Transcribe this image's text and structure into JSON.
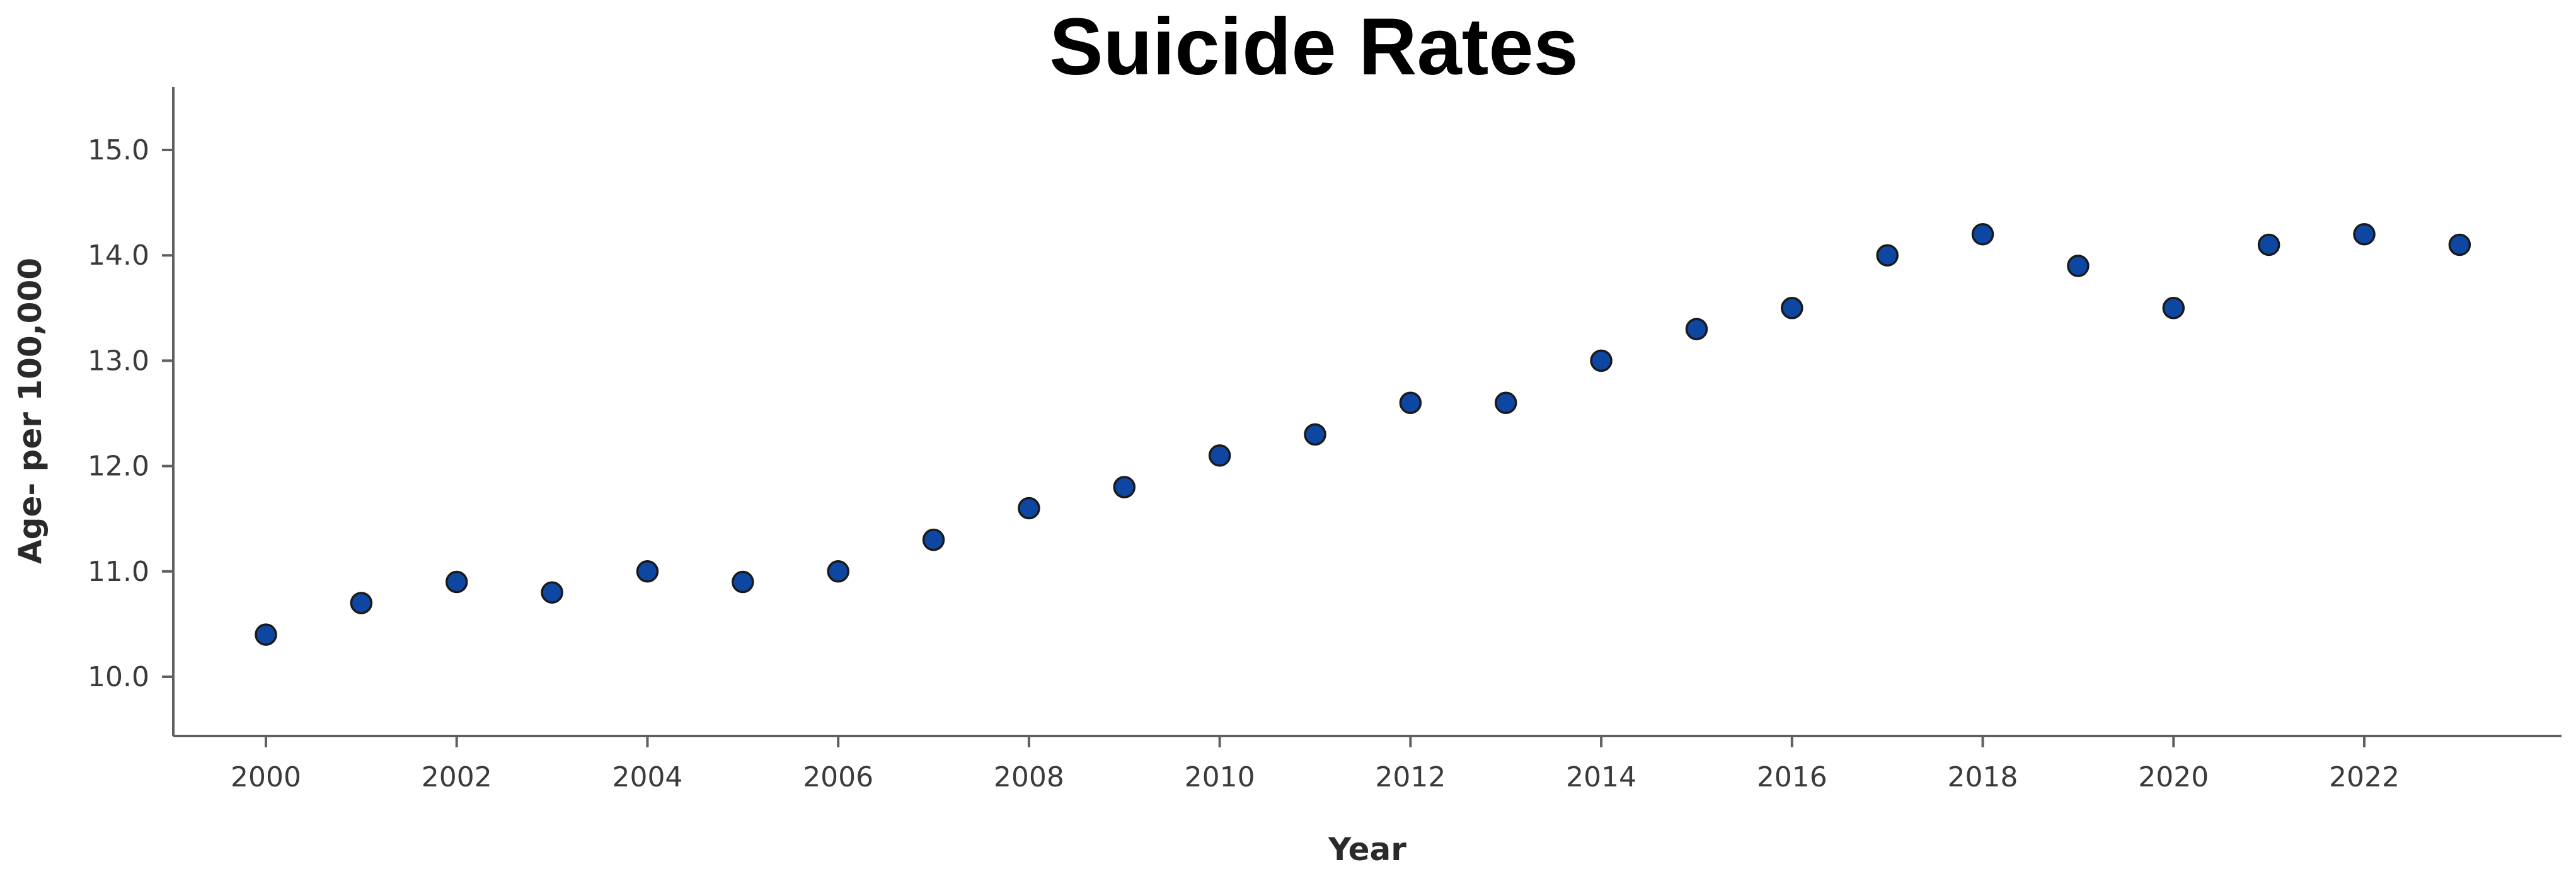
{
  "chart_data": {
    "type": "scatter",
    "title": "Suicide Rates",
    "xlabel": "Year",
    "ylabel": "Age- per 100,000",
    "x": [
      2000,
      2001,
      2002,
      2003,
      2004,
      2005,
      2006,
      2007,
      2008,
      2009,
      2010,
      2011,
      2012,
      2013,
      2014,
      2015,
      2016,
      2017,
      2018,
      2019,
      2020,
      2021,
      2022,
      2023
    ],
    "y": [
      10.4,
      10.7,
      10.9,
      10.8,
      11.0,
      10.9,
      11.0,
      11.3,
      11.6,
      11.8,
      12.1,
      12.3,
      12.6,
      12.6,
      13.0,
      13.3,
      13.5,
      14.0,
      14.2,
      13.9,
      13.5,
      14.1,
      14.2,
      14.1
    ],
    "x_ticks": [
      "2000",
      "2002",
      "2004",
      "2006",
      "2008",
      "2010",
      "2012",
      "2014",
      "2016",
      "2018",
      "2020",
      "2022"
    ],
    "y_ticks": [
      "10.0",
      "11.0",
      "12.0",
      "13.0",
      "14.0",
      "15.0"
    ],
    "xlim": [
      1999,
      2024.2
    ],
    "ylim": [
      9.45,
      15.6
    ],
    "marker_color": "#0d47a1",
    "grid": false,
    "legend": "none"
  }
}
